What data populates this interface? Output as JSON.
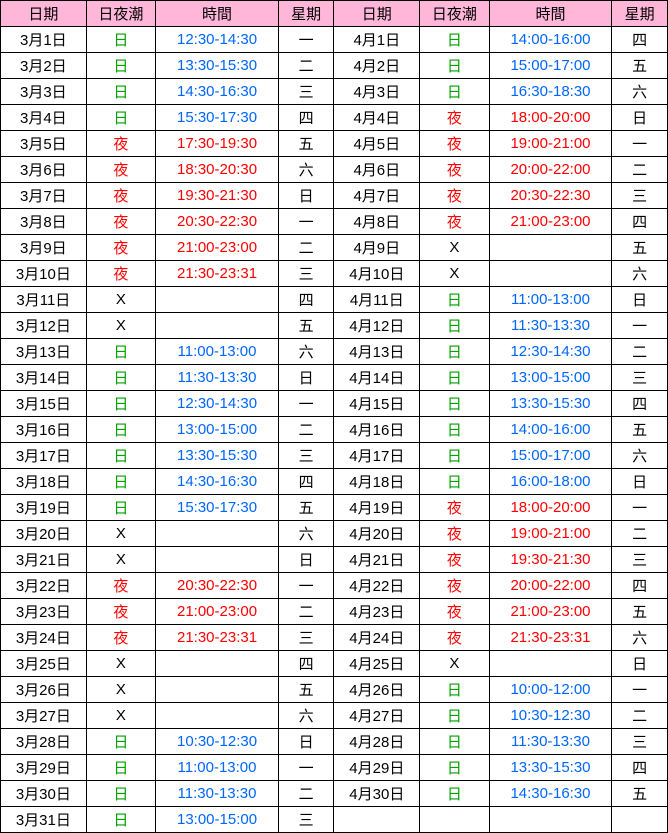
{
  "colors": {
    "header_bg": "#ffb6d9",
    "border": "#000000",
    "day_tide": "#00a000",
    "night_tide": "#ff0000",
    "day_time": "#0066ff",
    "night_time": "#ff0000",
    "text": "#000000"
  },
  "headers": [
    "日期",
    "日夜潮",
    "時間",
    "星期",
    "日期",
    "日夜潮",
    "時間",
    "星期"
  ],
  "rows": [
    {
      "d1": "3月1日",
      "t1": "日",
      "tm1": "12:30-14:30",
      "w1": "一",
      "d2": "4月1日",
      "t2": "日",
      "tm2": "14:00-16:00",
      "w2": "四"
    },
    {
      "d1": "3月2日",
      "t1": "日",
      "tm1": "13:30-15:30",
      "w1": "二",
      "d2": "4月2日",
      "t2": "日",
      "tm2": "15:00-17:00",
      "w2": "五"
    },
    {
      "d1": "3月3日",
      "t1": "日",
      "tm1": "14:30-16:30",
      "w1": "三",
      "d2": "4月3日",
      "t2": "日",
      "tm2": "16:30-18:30",
      "w2": "六"
    },
    {
      "d1": "3月4日",
      "t1": "日",
      "tm1": "15:30-17:30",
      "w1": "四",
      "d2": "4月4日",
      "t2": "夜",
      "tm2": "18:00-20:00",
      "w2": "日"
    },
    {
      "d1": "3月5日",
      "t1": "夜",
      "tm1": "17:30-19:30",
      "w1": "五",
      "d2": "4月5日",
      "t2": "夜",
      "tm2": "19:00-21:00",
      "w2": "一"
    },
    {
      "d1": "3月6日",
      "t1": "夜",
      "tm1": "18:30-20:30",
      "w1": "六",
      "d2": "4月6日",
      "t2": "夜",
      "tm2": "20:00-22:00",
      "w2": "二"
    },
    {
      "d1": "3月7日",
      "t1": "夜",
      "tm1": "19:30-21:30",
      "w1": "日",
      "d2": "4月7日",
      "t2": "夜",
      "tm2": "20:30-22:30",
      "w2": "三"
    },
    {
      "d1": "3月8日",
      "t1": "夜",
      "tm1": "20:30-22:30",
      "w1": "一",
      "d2": "4月8日",
      "t2": "夜",
      "tm2": "21:00-23:00",
      "w2": "四"
    },
    {
      "d1": "3月9日",
      "t1": "夜",
      "tm1": "21:00-23:00",
      "w1": "二",
      "d2": "4月9日",
      "t2": "X",
      "tm2": "",
      "w2": "五"
    },
    {
      "d1": "3月10日",
      "t1": "夜",
      "tm1": "21:30-23:31",
      "w1": "三",
      "d2": "4月10日",
      "t2": "X",
      "tm2": "",
      "w2": "六"
    },
    {
      "d1": "3月11日",
      "t1": "X",
      "tm1": "",
      "w1": "四",
      "d2": "4月11日",
      "t2": "日",
      "tm2": "11:00-13:00",
      "w2": "日"
    },
    {
      "d1": "3月12日",
      "t1": "X",
      "tm1": "",
      "w1": "五",
      "d2": "4月12日",
      "t2": "日",
      "tm2": "11:30-13:30",
      "w2": "一"
    },
    {
      "d1": "3月13日",
      "t1": "日",
      "tm1": "11:00-13:00",
      "w1": "六",
      "d2": "4月13日",
      "t2": "日",
      "tm2": "12:30-14:30",
      "w2": "二"
    },
    {
      "d1": "3月14日",
      "t1": "日",
      "tm1": "11:30-13:30",
      "w1": "日",
      "d2": "4月14日",
      "t2": "日",
      "tm2": "13:00-15:00",
      "w2": "三"
    },
    {
      "d1": "3月15日",
      "t1": "日",
      "tm1": "12:30-14:30",
      "w1": "一",
      "d2": "4月15日",
      "t2": "日",
      "tm2": "13:30-15:30",
      "w2": "四"
    },
    {
      "d1": "3月16日",
      "t1": "日",
      "tm1": "13:00-15:00",
      "w1": "二",
      "d2": "4月16日",
      "t2": "日",
      "tm2": "14:00-16:00",
      "w2": "五"
    },
    {
      "d1": "3月17日",
      "t1": "日",
      "tm1": "13:30-15:30",
      "w1": "三",
      "d2": "4月17日",
      "t2": "日",
      "tm2": "15:00-17:00",
      "w2": "六"
    },
    {
      "d1": "3月18日",
      "t1": "日",
      "tm1": "14:30-16:30",
      "w1": "四",
      "d2": "4月18日",
      "t2": "日",
      "tm2": "16:00-18:00",
      "w2": "日"
    },
    {
      "d1": "3月19日",
      "t1": "日",
      "tm1": "15:30-17:30",
      "w1": "五",
      "d2": "4月19日",
      "t2": "夜",
      "tm2": "18:00-20:00",
      "w2": "一"
    },
    {
      "d1": "3月20日",
      "t1": "X",
      "tm1": "",
      "w1": "六",
      "d2": "4月20日",
      "t2": "夜",
      "tm2": "19:00-21:00",
      "w2": "二"
    },
    {
      "d1": "3月21日",
      "t1": "X",
      "tm1": "",
      "w1": "日",
      "d2": "4月21日",
      "t2": "夜",
      "tm2": "19:30-21:30",
      "w2": "三"
    },
    {
      "d1": "3月22日",
      "t1": "夜",
      "tm1": "20:30-22:30",
      "w1": "一",
      "d2": "4月22日",
      "t2": "夜",
      "tm2": "20:00-22:00",
      "w2": "四"
    },
    {
      "d1": "3月23日",
      "t1": "夜",
      "tm1": "21:00-23:00",
      "w1": "二",
      "d2": "4月23日",
      "t2": "夜",
      "tm2": "21:00-23:00",
      "w2": "五"
    },
    {
      "d1": "3月24日",
      "t1": "夜",
      "tm1": "21:30-23:31",
      "w1": "三",
      "d2": "4月24日",
      "t2": "夜",
      "tm2": "21:30-23:31",
      "w2": "六"
    },
    {
      "d1": "3月25日",
      "t1": "X",
      "tm1": "",
      "w1": "四",
      "d2": "4月25日",
      "t2": "X",
      "tm2": "",
      "w2": "日"
    },
    {
      "d1": "3月26日",
      "t1": "X",
      "tm1": "",
      "w1": "五",
      "d2": "4月26日",
      "t2": "日",
      "tm2": "10:00-12:00",
      "w2": "一"
    },
    {
      "d1": "3月27日",
      "t1": "X",
      "tm1": "",
      "w1": "六",
      "d2": "4月27日",
      "t2": "日",
      "tm2": "10:30-12:30",
      "w2": "二"
    },
    {
      "d1": "3月28日",
      "t1": "日",
      "tm1": "10:30-12:30",
      "w1": "日",
      "d2": "4月28日",
      "t2": "日",
      "tm2": "11:30-13:30",
      "w2": "三"
    },
    {
      "d1": "3月29日",
      "t1": "日",
      "tm1": "11:00-13:00",
      "w1": "一",
      "d2": "4月29日",
      "t2": "日",
      "tm2": "13:30-15:30",
      "w2": "四"
    },
    {
      "d1": "3月30日",
      "t1": "日",
      "tm1": "11:30-13:30",
      "w1": "二",
      "d2": "4月30日",
      "t2": "日",
      "tm2": "14:30-16:30",
      "w2": "五"
    },
    {
      "d1": "3月31日",
      "t1": "日",
      "tm1": "13:00-15:00",
      "w1": "三",
      "d2": "",
      "t2": "",
      "tm2": "",
      "w2": ""
    }
  ]
}
